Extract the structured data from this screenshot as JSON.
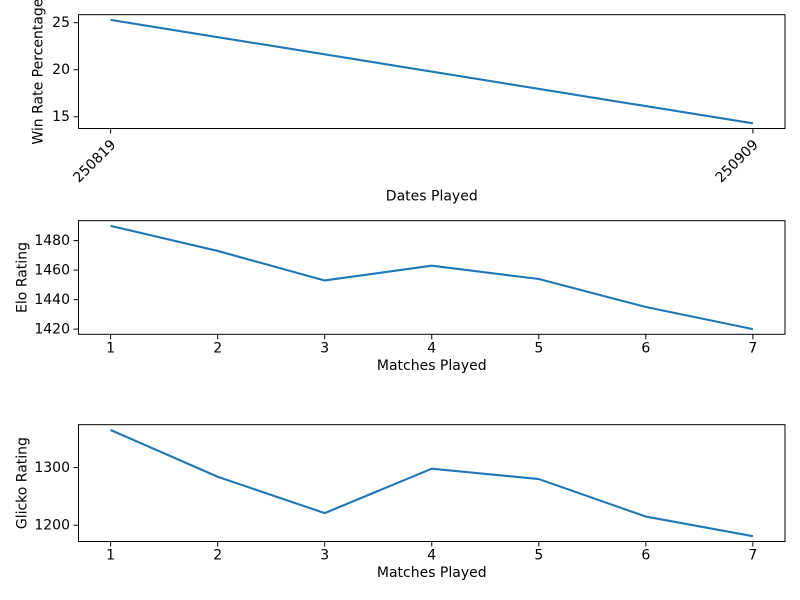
{
  "figure": {
    "background": "#ffffff",
    "line_color": "#1f77b4",
    "spine_color": "#000000",
    "text_color": "#000000"
  },
  "chart_data": [
    {
      "type": "line",
      "title": "",
      "xlabel": "Dates Played",
      "ylabel": "Win Rate Percentage",
      "x": [
        1,
        2
      ],
      "x_tick_labels": [
        "250819",
        "250909"
      ],
      "values": [
        25.3,
        14.3
      ],
      "y_ticks": [
        15,
        20,
        25
      ],
      "ylim": [
        13.75,
        25.85
      ],
      "grid": false,
      "legend": "none"
    },
    {
      "type": "line",
      "title": "",
      "xlabel": "Matches Played",
      "ylabel": "Elo Rating",
      "x": [
        1,
        2,
        3,
        4,
        5,
        6,
        7
      ],
      "x_tick_labels": [
        "1",
        "2",
        "3",
        "4",
        "5",
        "6",
        "7"
      ],
      "values": [
        1490,
        1473,
        1453,
        1463,
        1454,
        1435,
        1420
      ],
      "y_ticks": [
        1420,
        1440,
        1460,
        1480
      ],
      "ylim": [
        1416.5,
        1493.5
      ],
      "grid": false,
      "legend": "none"
    },
    {
      "type": "line",
      "title": "",
      "xlabel": "Matches Played",
      "ylabel": "Glicko Rating",
      "x": [
        1,
        2,
        3,
        4,
        5,
        6,
        7
      ],
      "x_tick_labels": [
        "1",
        "2",
        "3",
        "4",
        "5",
        "6",
        "7"
      ],
      "values": [
        1365,
        1284,
        1221,
        1298,
        1280,
        1215,
        1181
      ],
      "y_ticks": [
        1200,
        1300
      ],
      "ylim": [
        1171.8,
        1374.2
      ],
      "grid": false,
      "legend": "none"
    }
  ]
}
